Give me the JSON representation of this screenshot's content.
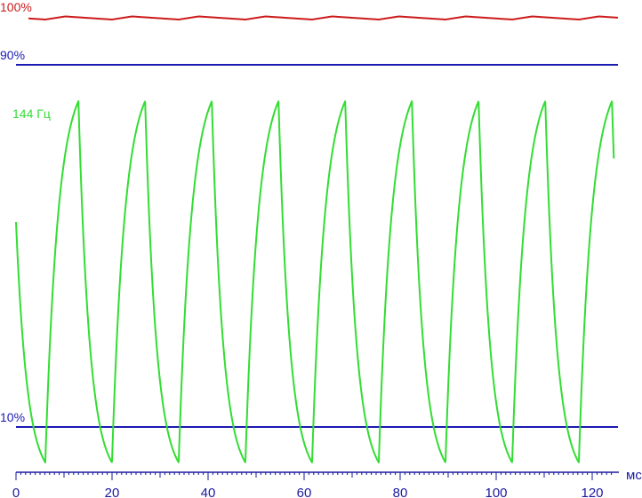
{
  "chart_data": {
    "type": "line",
    "title": "",
    "xlabel": "мс",
    "ylabel": "",
    "xlim": [
      0,
      125
    ],
    "ylim": [
      0,
      1
    ],
    "x_ticks": [
      0,
      20,
      40,
      60,
      80,
      100,
      120
    ],
    "x_tick_labels": [
      "0",
      "20",
      "40",
      "60",
      "80",
      "100",
      "120"
    ],
    "grid": false,
    "reference_lines": [
      {
        "label": "100%",
        "value": 100,
        "color": "#cc1a1a"
      },
      {
        "label": "90%",
        "value": 90,
        "color": "#1a1ab4"
      },
      {
        "label": "10%",
        "value": 10,
        "color": "#1a1ab4"
      }
    ],
    "series": [
      {
        "name": "144 Гц",
        "color": "#33dd33",
        "period_ms": 13.89,
        "x_first_min_ms": 6.1,
        "rise_ms": 6.9,
        "x_end_ms": 124.5
      }
    ],
    "series_label": "144 Гц",
    "colors": {
      "full_line": "#cc1a1a",
      "threshold_lines": "#1a1ab4",
      "signal": "#33dd33",
      "axis": "#1a1aa0"
    }
  }
}
